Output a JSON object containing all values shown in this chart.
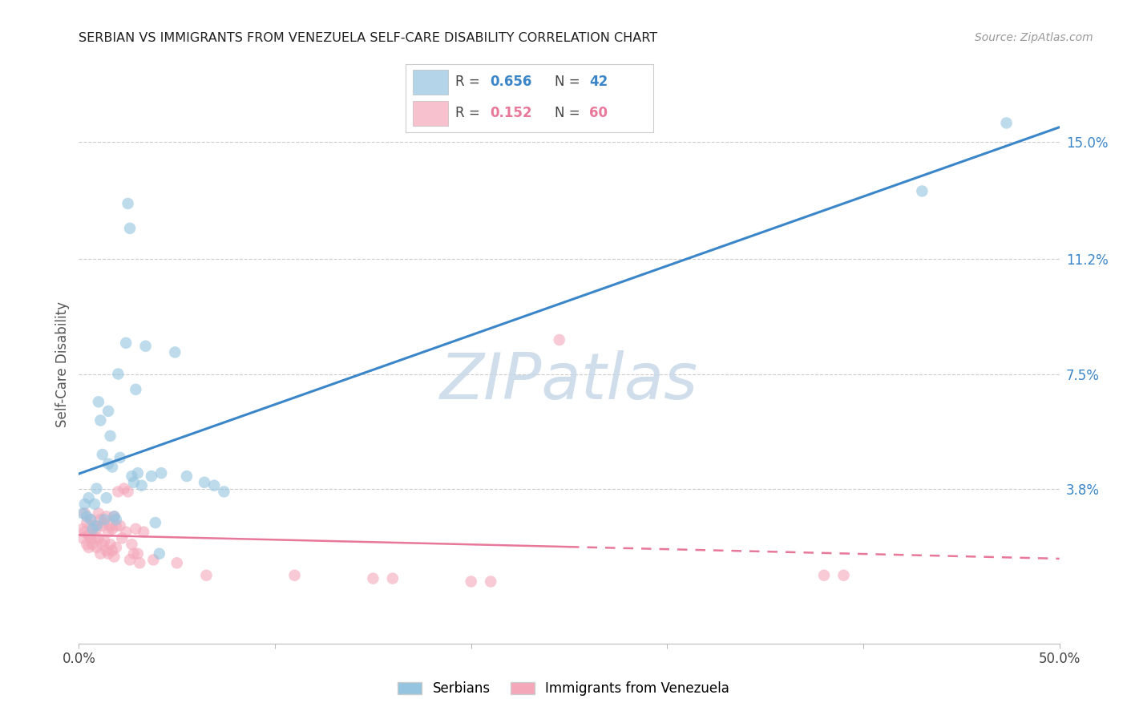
{
  "title": "SERBIAN VS IMMIGRANTS FROM VENEZUELA SELF-CARE DISABILITY CORRELATION CHART",
  "source": "Source: ZipAtlas.com",
  "ylabel": "Self-Care Disability",
  "xlim": [
    0.0,
    0.5
  ],
  "ylim": [
    -0.012,
    0.168
  ],
  "yticks": [
    0.0,
    0.038,
    0.075,
    0.112,
    0.15
  ],
  "ytick_labels": [
    "",
    "3.8%",
    "7.5%",
    "11.2%",
    "15.0%"
  ],
  "xticks": [
    0.0,
    0.1,
    0.2,
    0.3,
    0.4,
    0.5
  ],
  "xtick_labels": [
    "0.0%",
    "",
    "",
    "",
    "",
    "50.0%"
  ],
  "serbian_color": "#94c4e0",
  "venezuela_color": "#f4a7b9",
  "line_serbian_color": "#3a86c8",
  "line_venezuela_color": "#e8789a",
  "R_serbian": 0.656,
  "N_serbian": 42,
  "R_venezuela": 0.152,
  "N_venezuela": 60,
  "watermark": "ZIPatlas",
  "serbian_scatter": [
    [
      0.002,
      0.03
    ],
    [
      0.003,
      0.033
    ],
    [
      0.004,
      0.029
    ],
    [
      0.005,
      0.035
    ],
    [
      0.006,
      0.028
    ],
    [
      0.007,
      0.025
    ],
    [
      0.008,
      0.033
    ],
    [
      0.009,
      0.038
    ],
    [
      0.009,
      0.026
    ],
    [
      0.01,
      0.066
    ],
    [
      0.011,
      0.06
    ],
    [
      0.012,
      0.049
    ],
    [
      0.013,
      0.028
    ],
    [
      0.014,
      0.035
    ],
    [
      0.015,
      0.046
    ],
    [
      0.015,
      0.063
    ],
    [
      0.016,
      0.055
    ],
    [
      0.017,
      0.045
    ],
    [
      0.018,
      0.029
    ],
    [
      0.019,
      0.028
    ],
    [
      0.02,
      0.075
    ],
    [
      0.021,
      0.048
    ],
    [
      0.024,
      0.085
    ],
    [
      0.025,
      0.13
    ],
    [
      0.026,
      0.122
    ],
    [
      0.027,
      0.042
    ],
    [
      0.028,
      0.04
    ],
    [
      0.029,
      0.07
    ],
    [
      0.03,
      0.043
    ],
    [
      0.032,
      0.039
    ],
    [
      0.034,
      0.084
    ],
    [
      0.037,
      0.042
    ],
    [
      0.039,
      0.027
    ],
    [
      0.041,
      0.017
    ],
    [
      0.042,
      0.043
    ],
    [
      0.049,
      0.082
    ],
    [
      0.055,
      0.042
    ],
    [
      0.064,
      0.04
    ],
    [
      0.069,
      0.039
    ],
    [
      0.074,
      0.037
    ],
    [
      0.43,
      0.134
    ],
    [
      0.473,
      0.156
    ]
  ],
  "venezuela_scatter": [
    [
      0.002,
      0.025
    ],
    [
      0.002,
      0.022
    ],
    [
      0.003,
      0.03
    ],
    [
      0.003,
      0.024
    ],
    [
      0.004,
      0.02
    ],
    [
      0.004,
      0.027
    ],
    [
      0.005,
      0.023
    ],
    [
      0.005,
      0.019
    ],
    [
      0.006,
      0.028
    ],
    [
      0.006,
      0.022
    ],
    [
      0.007,
      0.025
    ],
    [
      0.007,
      0.02
    ],
    [
      0.008,
      0.026
    ],
    [
      0.008,
      0.022
    ],
    [
      0.009,
      0.025
    ],
    [
      0.009,
      0.019
    ],
    [
      0.01,
      0.03
    ],
    [
      0.01,
      0.022
    ],
    [
      0.011,
      0.028
    ],
    [
      0.011,
      0.017
    ],
    [
      0.012,
      0.026
    ],
    [
      0.012,
      0.02
    ],
    [
      0.013,
      0.027
    ],
    [
      0.013,
      0.021
    ],
    [
      0.014,
      0.029
    ],
    [
      0.014,
      0.018
    ],
    [
      0.015,
      0.024
    ],
    [
      0.015,
      0.017
    ],
    [
      0.016,
      0.026
    ],
    [
      0.016,
      0.02
    ],
    [
      0.017,
      0.025
    ],
    [
      0.017,
      0.018
    ],
    [
      0.018,
      0.029
    ],
    [
      0.018,
      0.016
    ],
    [
      0.019,
      0.026
    ],
    [
      0.019,
      0.019
    ],
    [
      0.02,
      0.037
    ],
    [
      0.021,
      0.026
    ],
    [
      0.022,
      0.022
    ],
    [
      0.023,
      0.038
    ],
    [
      0.024,
      0.024
    ],
    [
      0.025,
      0.037
    ],
    [
      0.026,
      0.015
    ],
    [
      0.027,
      0.02
    ],
    [
      0.028,
      0.017
    ],
    [
      0.029,
      0.025
    ],
    [
      0.03,
      0.017
    ],
    [
      0.031,
      0.014
    ],
    [
      0.033,
      0.024
    ],
    [
      0.038,
      0.015
    ],
    [
      0.05,
      0.014
    ],
    [
      0.065,
      0.01
    ],
    [
      0.11,
      0.01
    ],
    [
      0.2,
      0.008
    ],
    [
      0.21,
      0.008
    ],
    [
      0.245,
      0.086
    ],
    [
      0.38,
      0.01
    ],
    [
      0.39,
      0.01
    ],
    [
      0.15,
      0.009
    ],
    [
      0.16,
      0.009
    ]
  ]
}
